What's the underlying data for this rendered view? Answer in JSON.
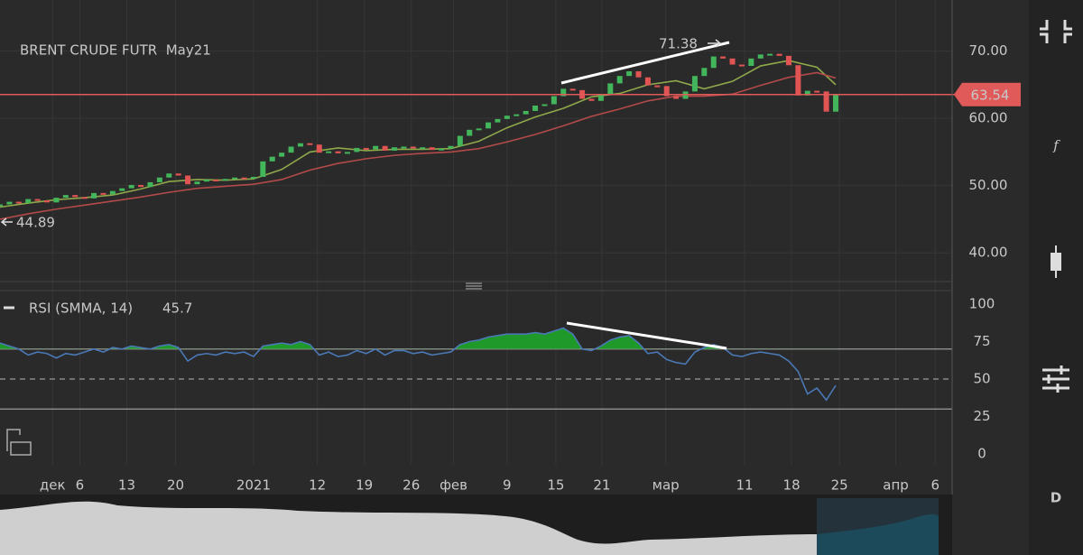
{
  "chart_data": [
    {
      "type": "candlestick",
      "title": "BRENT CRUDE FUTR  May21",
      "x": [
        0,
        1,
        2,
        3,
        4,
        5,
        6,
        7,
        8,
        9,
        10,
        11,
        12,
        13,
        14,
        15,
        16,
        17,
        18,
        19,
        20,
        21,
        22,
        23,
        24,
        25,
        26,
        27,
        28,
        29,
        30,
        31,
        32,
        33,
        34,
        35,
        36,
        37,
        38,
        39,
        40,
        41,
        42,
        43,
        44,
        45,
        46,
        47,
        48,
        49,
        50,
        51,
        52,
        53,
        54,
        55,
        56,
        57,
        58,
        59,
        60,
        61,
        62,
        63,
        64,
        65,
        66,
        67,
        68,
        69,
        70,
        71,
        72,
        73,
        74,
        75,
        76,
        77,
        78,
        79,
        80,
        81,
        82,
        83,
        84,
        85,
        86,
        87,
        88,
        89
      ],
      "values": [
        47.2,
        47.6,
        47.4,
        48.0,
        47.8,
        47.5,
        48.2,
        48.6,
        48.3,
        48.1,
        48.9,
        48.7,
        49.2,
        49.6,
        50.1,
        49.8,
        50.5,
        51.2,
        51.8,
        51.5,
        50.2,
        50.6,
        50.9,
        50.8,
        51.0,
        51.2,
        51.1,
        51.3,
        53.6,
        54.3,
        54.9,
        55.8,
        56.3,
        56.1,
        54.9,
        55.1,
        54.8,
        55.0,
        55.6,
        55.4,
        55.9,
        55.2,
        55.7,
        55.8,
        55.6,
        55.7,
        55.3,
        55.5,
        55.9,
        57.4,
        58.3,
        58.5,
        59.4,
        59.9,
        60.4,
        60.6,
        61.1,
        61.9,
        62.1,
        63.3,
        64.4,
        64.2,
        62.9,
        62.6,
        63.5,
        65.2,
        66.3,
        67.0,
        66.1,
        64.9,
        64.8,
        63.3,
        62.9,
        64.0,
        66.3,
        67.5,
        69.2,
        68.9,
        68.0,
        67.8,
        68.9,
        69.5,
        69.6,
        69.3,
        67.9,
        63.4,
        64.1,
        64.0,
        61.0,
        63.54
      ],
      "up_color": "#43b55b",
      "down_color": "#e05454",
      "lines": [
        {
          "color": "#8fa84a",
          "x": [
            0,
            3,
            6,
            9,
            12,
            15,
            18,
            21,
            24,
            27,
            30,
            33,
            36,
            39,
            42,
            45,
            48,
            51,
            54,
            57,
            60,
            63,
            66,
            69,
            72,
            75,
            78,
            81,
            84,
            87,
            89
          ],
          "values": [
            46.8,
            47.4,
            47.9,
            48.2,
            48.6,
            49.5,
            50.6,
            50.9,
            50.8,
            51.0,
            52.4,
            55.0,
            55.6,
            55.2,
            55.4,
            55.4,
            55.5,
            56.6,
            58.6,
            60.2,
            61.5,
            63.2,
            63.7,
            65.0,
            65.6,
            64.4,
            65.5,
            67.8,
            68.6,
            67.6,
            65.0
          ]
        },
        {
          "color": "#b34a4a",
          "x": [
            0,
            3,
            6,
            9,
            12,
            15,
            18,
            21,
            24,
            27,
            30,
            33,
            36,
            39,
            42,
            45,
            48,
            51,
            54,
            57,
            60,
            63,
            66,
            69,
            72,
            75,
            78,
            81,
            84,
            87,
            89
          ],
          "values": [
            45.0,
            45.8,
            46.5,
            47.1,
            47.7,
            48.3,
            49.0,
            49.6,
            49.9,
            50.2,
            50.9,
            52.3,
            53.3,
            54.0,
            54.5,
            54.8,
            55.0,
            55.5,
            56.5,
            57.6,
            58.9,
            60.3,
            61.4,
            62.6,
            63.3,
            63.3,
            63.6,
            64.9,
            66.1,
            66.8,
            66.0
          ]
        }
      ],
      "xlim": [
        0,
        101.4
      ],
      "ylim": [
        36,
        77.6
      ],
      "yticks": [
        {
          "value": 70,
          "label": "70.00"
        },
        {
          "value": 60,
          "label": "60.00"
        },
        {
          "value": 50,
          "label": "50.00"
        },
        {
          "value": 40,
          "label": "40.00"
        }
      ],
      "price_line": 63.54,
      "price_line_color": "#e05a5a",
      "annotations": {
        "high": "71.38",
        "low": "44.89"
      }
    },
    {
      "type": "line",
      "title": "RSI (SMMA, 14)",
      "last_value": "45.7",
      "color": "#4a78b5",
      "fill_color": "#1f9a2a",
      "x": [
        0,
        1,
        2,
        3,
        4,
        5,
        6,
        7,
        8,
        9,
        10,
        11,
        12,
        13,
        14,
        15,
        16,
        17,
        18,
        19,
        20,
        21,
        22,
        23,
        24,
        25,
        26,
        27,
        28,
        29,
        30,
        31,
        32,
        33,
        34,
        35,
        36,
        37,
        38,
        39,
        40,
        41,
        42,
        43,
        44,
        45,
        46,
        47,
        48,
        49,
        50,
        51,
        52,
        53,
        54,
        55,
        56,
        57,
        58,
        59,
        60,
        61,
        62,
        63,
        64,
        65,
        66,
        67,
        68,
        69,
        70,
        71,
        72,
        73,
        74,
        75,
        76,
        77,
        78,
        79,
        80,
        81,
        82,
        83,
        84,
        85,
        86,
        87,
        88,
        89
      ],
      "values": [
        74,
        72,
        70,
        66,
        68,
        67,
        64,
        67,
        66,
        68,
        70,
        68,
        71,
        70,
        72,
        71,
        70,
        72,
        73,
        71,
        62,
        66,
        67,
        66,
        68,
        67,
        68,
        65,
        72,
        73,
        74,
        73,
        75,
        73,
        66,
        68,
        65,
        66,
        69,
        67,
        70,
        66,
        69,
        69,
        67,
        68,
        66,
        67,
        68,
        73,
        75,
        76,
        78,
        79,
        80,
        80,
        80,
        81,
        80,
        82,
        84,
        80,
        70,
        69,
        72,
        76,
        78,
        79,
        74,
        67,
        68,
        63,
        61,
        60,
        68,
        71,
        73,
        71,
        66,
        65,
        67,
        68,
        67,
        66,
        62,
        55,
        40,
        44,
        36,
        45.7
      ],
      "levels": [
        70,
        50,
        30
      ],
      "xlim": [
        0,
        101.4
      ],
      "ylim": [
        -7.2,
        109
      ],
      "yticks": [
        100,
        75,
        50,
        25,
        0
      ],
      "xticks": [
        {
          "value": 5.6,
          "label": "дек"
        },
        {
          "value": 8.5,
          "label": "6"
        },
        {
          "value": 13.5,
          "label": "13"
        },
        {
          "value": 18.7,
          "label": "20"
        },
        {
          "value": 27.0,
          "label": "2021"
        },
        {
          "value": 33.8,
          "label": "12"
        },
        {
          "value": 38.8,
          "label": "19"
        },
        {
          "value": 43.8,
          "label": "26"
        },
        {
          "value": 48.3,
          "label": "фев"
        },
        {
          "value": 54.0,
          "label": "9"
        },
        {
          "value": 59.2,
          "label": "15"
        },
        {
          "value": 64.1,
          "label": "21"
        },
        {
          "value": 70.9,
          "label": "мар"
        },
        {
          "value": 79.3,
          "label": "11"
        },
        {
          "value": 84.3,
          "label": "18"
        },
        {
          "value": 89.4,
          "label": "25"
        },
        {
          "value": 95.4,
          "label": "апр"
        },
        {
          "value": 99.6,
          "label": "6"
        }
      ]
    }
  ],
  "toolbar": {
    "function": "f",
    "mode": "D"
  }
}
